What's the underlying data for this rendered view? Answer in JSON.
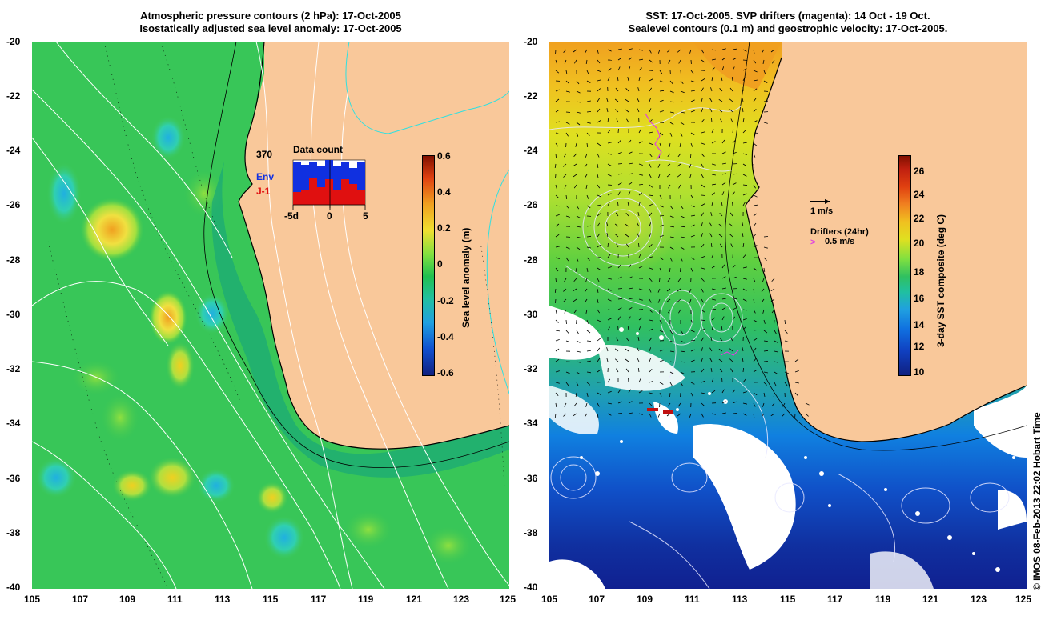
{
  "left_panel": {
    "title_line1": "Atmospheric pressure contours (2 hPa): 17-Oct-2005",
    "title_line2": "Isostatically adjusted sea level anomaly: 17-Oct-2005",
    "y_ticks": [
      "-20",
      "-22",
      "-24",
      "-26",
      "-28",
      "-30",
      "-32",
      "-34",
      "-36",
      "-38",
      "-40"
    ],
    "x_ticks": [
      "105",
      "107",
      "109",
      "111",
      "113",
      "115",
      "117",
      "119",
      "121",
      "123",
      "125"
    ],
    "inset": {
      "count": "370",
      "title": "Data count",
      "legend_env": "Env",
      "legend_j1": "J-1",
      "x_ticks": [
        "-5d",
        "0",
        "5"
      ],
      "env_color": "#1030e0",
      "j1_color": "#e01010"
    },
    "colorbar": {
      "label": "Sea level anomaly (m)",
      "ticks": [
        "0.6",
        "0.4",
        "0.2",
        "0",
        "-0.2",
        "-0.4",
        "-0.6"
      ]
    }
  },
  "right_panel": {
    "title_line1": "SST: 17-Oct-2005. SVP drifters (magenta): 14 Oct - 19 Oct.",
    "title_line2": "Sealevel contours (0.1 m) and geostrophic velocity: 17-Oct-2005.",
    "y_ticks": [
      "-20",
      "-22",
      "-24",
      "-26",
      "-28",
      "-30",
      "-32",
      "-34",
      "-36",
      "-38",
      "-40"
    ],
    "x_ticks": [
      "105",
      "107",
      "109",
      "111",
      "113",
      "115",
      "117",
      "119",
      "121",
      "123",
      "125"
    ],
    "legend": {
      "velocity_scale": "1 m/s",
      "drifters_title": "Drifters (24hr)",
      "drifters_scale": "0.5 m/s",
      "drifter_color": "#e040e0"
    },
    "colorbar": {
      "label": "3-day SST composite (deg C)",
      "ticks": [
        "26",
        "24",
        "22",
        "20",
        "18",
        "16",
        "14",
        "12",
        "10"
      ]
    }
  },
  "credit": "© IMOS 08-Feb-2013 22:02 Hobart Time",
  "colors": {
    "land": "#f9c89a",
    "sea_green": "#20c060",
    "contour_white": "#ffffff",
    "coast_cyan": "#30e0e0"
  }
}
